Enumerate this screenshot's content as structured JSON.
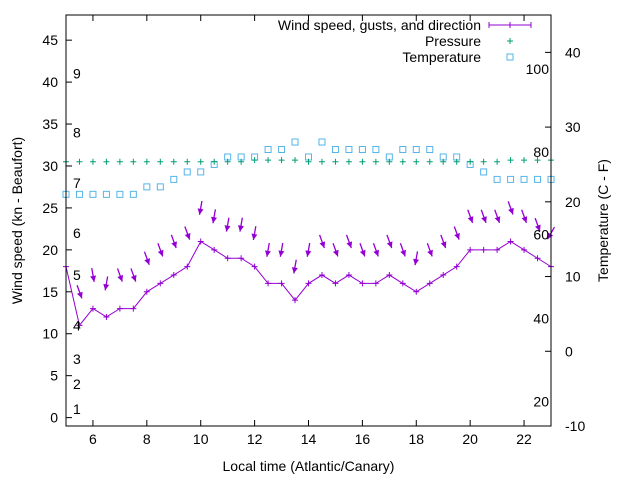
{
  "colors": {
    "wind": "#9400d3",
    "pressure": "#009e73",
    "temperature": "#56b4e9",
    "axis": "#000000"
  },
  "chart_data": {
    "type": "line",
    "xlabel": "Local time (Atlantic/Canary)",
    "ylabel": "Wind speed (kn - Beaufort)",
    "y2label": "Temperature (C - F)",
    "xlim": [
      5,
      23
    ],
    "ylim": [
      -1,
      48
    ],
    "y2lim": [
      -10,
      45
    ],
    "x_ticks": [
      "6",
      "8",
      "10",
      "12",
      "14",
      "16",
      "18",
      "20",
      "22"
    ],
    "y_ticks": [
      "0",
      "5",
      "10",
      "15",
      "20",
      "25",
      "30",
      "35",
      "40",
      "45"
    ],
    "y2_ticks": [
      "-10",
      "0",
      "10",
      "20",
      "30",
      "40"
    ],
    "beaufort_labels": [
      {
        "label": "1",
        "kn": 1
      },
      {
        "label": "2",
        "kn": 4
      },
      {
        "label": "3",
        "kn": 7
      },
      {
        "label": "4",
        "kn": 11
      },
      {
        "label": "5",
        "kn": 17
      },
      {
        "label": "6",
        "kn": 22
      },
      {
        "label": "7",
        "kn": 28
      },
      {
        "label": "8",
        "kn": 34
      },
      {
        "label": "9",
        "kn": 41
      }
    ],
    "fahrenheit_labels": [
      {
        "label": "20",
        "c": -6.7
      },
      {
        "label": "40",
        "c": 4.4
      },
      {
        "label": "60",
        "c": 15.6
      },
      {
        "label": "80",
        "c": 26.7
      },
      {
        "label": "100",
        "c": 37.8
      }
    ],
    "series": [
      {
        "name": "Wind speed, gusts, and direction",
        "axis": "y",
        "x": [
          5,
          5.5,
          6,
          6.5,
          7,
          7.5,
          8,
          8.5,
          9,
          9.5,
          10,
          10.5,
          11,
          11.5,
          12,
          12.5,
          13,
          13.5,
          14,
          14.5,
          15,
          15.5,
          16,
          16.5,
          17,
          17.5,
          18,
          18.5,
          19,
          19.5,
          20,
          20.5,
          21,
          21.5,
          22,
          22.5,
          23
        ],
        "values": [
          18,
          11,
          13,
          12,
          13,
          13,
          15,
          16,
          17,
          18,
          21,
          20,
          19,
          19,
          18,
          16,
          16,
          14,
          16,
          17,
          16,
          17,
          16,
          16,
          17,
          16,
          15,
          16,
          17,
          18,
          20,
          20,
          20,
          21,
          20,
          19,
          18
        ],
        "gusts": [
          null,
          15,
          17,
          16,
          17,
          17,
          19,
          20,
          21,
          22,
          25,
          24,
          23,
          23,
          22,
          20,
          20,
          18,
          20,
          21,
          20,
          21,
          20,
          20,
          21,
          20,
          19,
          20,
          21,
          22,
          24,
          24,
          24,
          25,
          24,
          23,
          22
        ],
        "direction_deg": [
          330,
          20,
          10,
          350,
          20,
          20,
          20,
          20,
          20,
          20,
          350,
          350,
          350,
          350,
          350,
          350,
          350,
          350,
          350,
          20,
          20,
          20,
          20,
          20,
          20,
          20,
          350,
          20,
          20,
          20,
          20,
          20,
          20,
          20,
          20,
          20,
          330
        ]
      },
      {
        "name": "Pressure",
        "axis": "y",
        "x": [
          5,
          5.5,
          6,
          6.5,
          7,
          7.5,
          8,
          8.5,
          9,
          9.5,
          10,
          10.5,
          11,
          11.5,
          12,
          12.5,
          13,
          13.5,
          14,
          14.5,
          15,
          15.5,
          16,
          16.5,
          17,
          17.5,
          18,
          18.5,
          19,
          19.5,
          20,
          20.5,
          21,
          21.5,
          22,
          22.5,
          23
        ],
        "values": [
          30.5,
          30.5,
          30.5,
          30.5,
          30.5,
          30.5,
          30.5,
          30.5,
          30.5,
          30.5,
          30.5,
          30.5,
          30.5,
          30.5,
          30.7,
          30.7,
          30.7,
          30.7,
          30.5,
          30.5,
          30.5,
          30.5,
          30.5,
          30.5,
          30.5,
          30.5,
          30.5,
          30.5,
          30.5,
          30.5,
          30.5,
          30.5,
          30.5,
          30.7,
          30.7,
          30.7,
          30.7
        ]
      },
      {
        "name": "Temperature",
        "axis": "y2",
        "x": [
          5,
          5.5,
          6,
          6.5,
          7,
          7.5,
          8,
          8.5,
          9,
          9.5,
          10,
          10.5,
          11,
          11.5,
          12,
          12.5,
          13,
          13.5,
          14,
          14.5,
          15,
          15.5,
          16,
          16.5,
          17,
          17.5,
          18,
          18.5,
          19,
          19.5,
          20,
          20.5,
          21,
          21.5,
          22,
          22.5,
          23
        ],
        "values": [
          21,
          21,
          21,
          21,
          21,
          21,
          22,
          22,
          23,
          24,
          24,
          25,
          26,
          26,
          26,
          27,
          27,
          28,
          26,
          28,
          27,
          27,
          27,
          27,
          26,
          27,
          27,
          27,
          26,
          26,
          25,
          24,
          23,
          23,
          23,
          23,
          23
        ]
      }
    ]
  }
}
